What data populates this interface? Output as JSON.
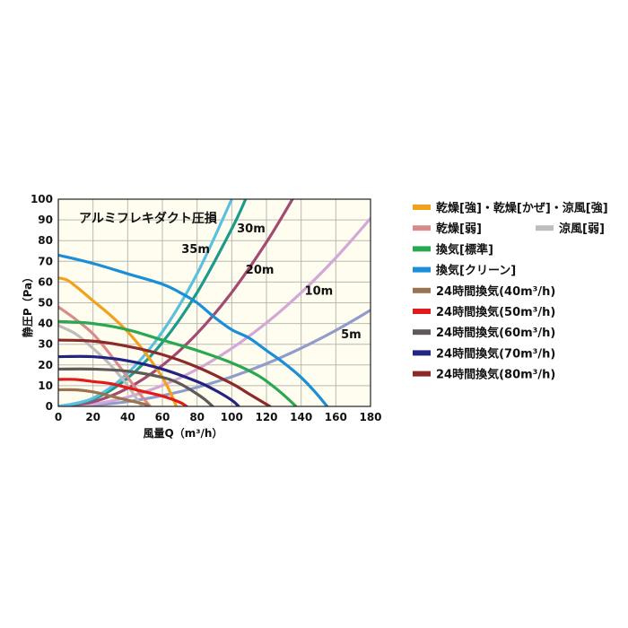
{
  "chart_data": {
    "type": "line",
    "title": "アルミフレキダクト圧損",
    "xlabel": "風量Q（m³/h）",
    "ylabel": "静圧P（Pa）",
    "xlim": [
      0,
      180
    ],
    "ylim": [
      0,
      100
    ],
    "x_ticks": [
      "0",
      "20",
      "40",
      "60",
      "80",
      "100",
      "120",
      "140",
      "160",
      "180"
    ],
    "y_ticks": [
      "0",
      "10",
      "20",
      "30",
      "40",
      "50",
      "60",
      "70",
      "80",
      "90",
      "100"
    ],
    "grid": true,
    "legend_position": "right",
    "background": "#fffdf0",
    "duct_curves": [
      {
        "label": "5m",
        "color": "#8f9ccc",
        "x": [
          0,
          20,
          40,
          60,
          80,
          100,
          120,
          140,
          160,
          180
        ],
        "y": [
          0,
          0.6,
          2.3,
          5.2,
          9.2,
          14.3,
          20.6,
          28.1,
          36.7,
          46.4
        ]
      },
      {
        "label": "10m",
        "color": "#d4a8d6",
        "x": [
          0,
          20,
          40,
          60,
          80,
          100,
          120,
          140,
          160,
          180
        ],
        "y": [
          0,
          1.1,
          4.5,
          10.1,
          17.9,
          28.0,
          40.3,
          54.9,
          71.7,
          90.7
        ]
      },
      {
        "label": "20m",
        "color": "#a34a73",
        "x": [
          0,
          20,
          40,
          60,
          80,
          100,
          120,
          135
        ],
        "y": [
          0,
          2.2,
          8.8,
          19.8,
          35.2,
          55.0,
          79.2,
          100
        ]
      },
      {
        "label": "30m",
        "color": "#1c9a8a",
        "x": [
          0,
          20,
          40,
          60,
          80,
          100,
          108
        ],
        "y": [
          0,
          3.4,
          13.7,
          30.9,
          54.9,
          85.7,
          100
        ]
      },
      {
        "label": "35m",
        "color": "#5bc0e0",
        "x": [
          0,
          20,
          40,
          60,
          80,
          100
        ],
        "y": [
          0,
          4.0,
          16.0,
          36.0,
          64.0,
          100
        ]
      }
    ],
    "label_positions": [
      {
        "label": "5m",
        "x": 163,
        "y": 33
      },
      {
        "label": "10m",
        "x": 142,
        "y": 54
      },
      {
        "label": "20m",
        "x": 108,
        "y": 64
      },
      {
        "label": "30m",
        "x": 103,
        "y": 84
      },
      {
        "label": "35m",
        "x": 71,
        "y": 74
      }
    ],
    "series": [
      {
        "name": "乾燥[強]・乾燥[かぜ]・涼風[強]",
        "color": "#f2a11c",
        "x": [
          0,
          5,
          10,
          20,
          30,
          40,
          50,
          60,
          65,
          68
        ],
        "y": [
          62,
          61,
          58,
          51,
          44,
          36,
          26,
          14,
          6,
          0
        ]
      },
      {
        "name": "乾燥[弱]",
        "color": "#d98b8b",
        "x": [
          0,
          10,
          20,
          30,
          40,
          48,
          53
        ],
        "y": [
          48,
          42,
          35,
          25,
          14,
          5,
          0
        ]
      },
      {
        "name": "涼風[弱]",
        "color": "#bdbdbd",
        "x": [
          0,
          10,
          20,
          30,
          40,
          48
        ],
        "y": [
          39,
          35,
          28,
          20,
          10,
          0
        ]
      },
      {
        "name": "換気[標準]",
        "color": "#2aa84f",
        "x": [
          0,
          20,
          40,
          60,
          80,
          100,
          115,
          125,
          132,
          137
        ],
        "y": [
          41,
          40,
          37,
          32,
          27,
          21,
          15,
          9,
          4,
          0
        ]
      },
      {
        "name": "換気[クリーン]",
        "color": "#1a8fd8",
        "x": [
          0,
          20,
          40,
          60,
          70,
          80,
          90,
          100,
          110,
          120,
          130,
          140,
          148,
          155
        ],
        "y": [
          73,
          69,
          64,
          59,
          55,
          50,
          43,
          37,
          33,
          27,
          21,
          14,
          7,
          0
        ]
      },
      {
        "name": "24時間換気(40m³/h)",
        "color": "#9a7450",
        "x": [
          0,
          10,
          20,
          30,
          40,
          50,
          52
        ],
        "y": [
          8,
          8,
          7,
          5,
          3,
          1,
          0
        ]
      },
      {
        "name": "24時間換気(50m³/h)",
        "color": "#e01b1b",
        "x": [
          0,
          10,
          20,
          30,
          40,
          50,
          60,
          70,
          74
        ],
        "y": [
          13,
          13,
          12,
          11,
          9,
          7,
          5,
          2,
          0
        ]
      },
      {
        "name": "24時間換気(60m³/h)",
        "color": "#5e5a5a",
        "x": [
          0,
          20,
          40,
          60,
          70,
          80,
          85,
          89
        ],
        "y": [
          18,
          18,
          17,
          14,
          11,
          6,
          3,
          0
        ]
      },
      {
        "name": "24時間換気(70m³/h)",
        "color": "#232382",
        "x": [
          0,
          20,
          40,
          60,
          80,
          90,
          100,
          104
        ],
        "y": [
          24,
          24,
          22,
          18,
          12,
          8,
          3,
          0
        ]
      },
      {
        "name": "24時間換気(80m³/h)",
        "color": "#8c2a2a",
        "x": [
          0,
          20,
          40,
          60,
          80,
          100,
          110,
          118,
          122
        ],
        "y": [
          32,
          31.5,
          29,
          25,
          19,
          11,
          6,
          2,
          0
        ]
      }
    ]
  }
}
